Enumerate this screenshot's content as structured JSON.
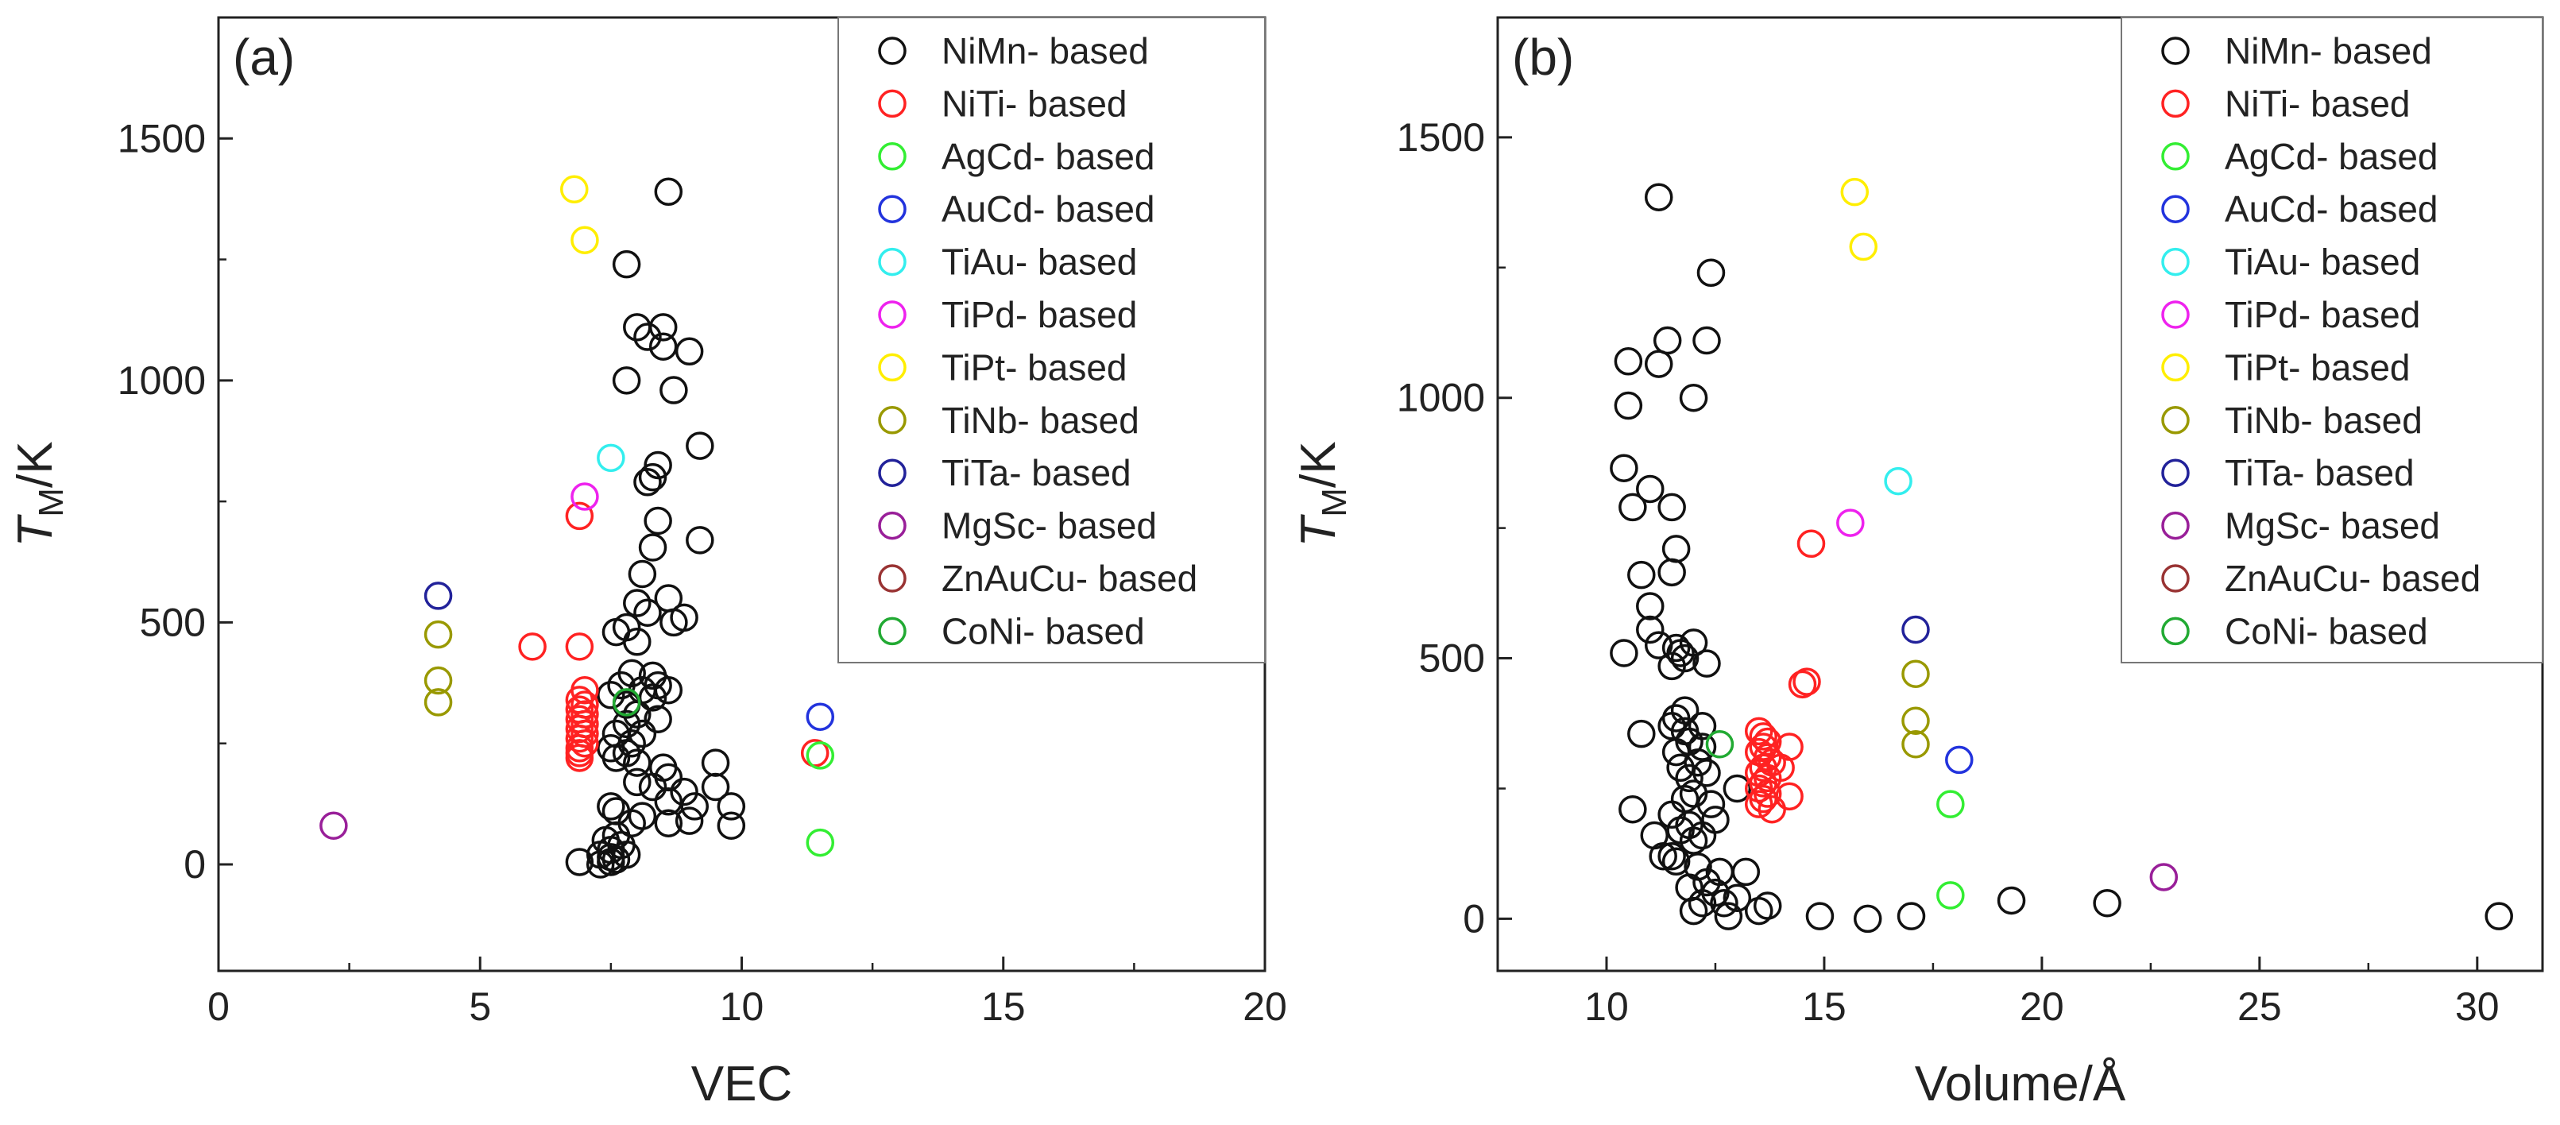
{
  "figure_description": "",
  "chart_data": [
    {
      "type": "scatter",
      "panel_label": "(a)",
      "title": "",
      "xlabel": "VEC",
      "ylabel_main": "T",
      "ylabel_sub": "M",
      "ylabel_rest": "/K",
      "xlim": [
        0,
        20
      ],
      "ylim": [
        -220,
        1750
      ],
      "xticks": [
        0,
        5,
        10,
        15,
        20
      ],
      "yticks": [
        0,
        500,
        1000,
        1500
      ],
      "grid": false,
      "legend_position": "top-right",
      "series": [
        {
          "name": "NiMn- based",
          "color": "#111111",
          "points": [
            [
              8.6,
              1390
            ],
            [
              7.8,
              1240
            ],
            [
              8.0,
              1110
            ],
            [
              8.5,
              1110
            ],
            [
              8.2,
              1090
            ],
            [
              8.5,
              1070
            ],
            [
              9.0,
              1060
            ],
            [
              7.8,
              1000
            ],
            [
              8.7,
              980
            ],
            [
              9.2,
              865
            ],
            [
              8.4,
              825
            ],
            [
              8.2,
              790
            ],
            [
              8.3,
              800
            ],
            [
              8.4,
              710
            ],
            [
              9.2,
              670
            ],
            [
              8.3,
              655
            ],
            [
              8.1,
              600
            ],
            [
              8.0,
              540
            ],
            [
              8.2,
              520
            ],
            [
              8.6,
              550
            ],
            [
              8.9,
              510
            ],
            [
              8.7,
              500
            ],
            [
              7.8,
              490
            ],
            [
              7.6,
              480
            ],
            [
              8.0,
              460
            ],
            [
              8.3,
              390
            ],
            [
              7.9,
              395
            ],
            [
              7.7,
              370
            ],
            [
              8.4,
              370
            ],
            [
              8.6,
              360
            ],
            [
              8.1,
              360
            ],
            [
              8.3,
              345
            ],
            [
              7.5,
              350
            ],
            [
              7.8,
              330
            ],
            [
              8.0,
              310
            ],
            [
              8.4,
              300
            ],
            [
              7.8,
              290
            ],
            [
              7.6,
              270
            ],
            [
              8.1,
              270
            ],
            [
              7.9,
              250
            ],
            [
              7.5,
              240
            ],
            [
              7.8,
              230
            ],
            [
              7.6,
              220
            ],
            [
              9.5,
              210
            ],
            [
              8.0,
              210
            ],
            [
              8.5,
              200
            ],
            [
              8.6,
              180
            ],
            [
              8.0,
              170
            ],
            [
              8.3,
              160
            ],
            [
              9.5,
              160
            ],
            [
              8.9,
              150
            ],
            [
              8.6,
              130
            ],
            [
              9.1,
              120
            ],
            [
              7.5,
              120
            ],
            [
              7.6,
              110
            ],
            [
              8.1,
              100
            ],
            [
              9.0,
              90
            ],
            [
              8.6,
              85
            ],
            [
              7.9,
              85
            ],
            [
              9.8,
              120
            ],
            [
              9.8,
              80
            ],
            [
              7.6,
              60
            ],
            [
              7.4,
              50
            ],
            [
              7.7,
              40
            ],
            [
              7.5,
              30
            ],
            [
              7.3,
              20
            ],
            [
              7.5,
              15
            ],
            [
              7.8,
              20
            ],
            [
              6.9,
              5
            ],
            [
              7.3,
              0
            ],
            [
              7.5,
              5
            ],
            [
              7.6,
              10
            ]
          ]
        },
        {
          "name": "NiTi- based",
          "color": "#ff2222",
          "points": [
            [
              6.0,
              450
            ],
            [
              6.9,
              450
            ],
            [
              6.9,
              720
            ],
            [
              7.0,
              360
            ],
            [
              6.9,
              340
            ],
            [
              7.0,
              330
            ],
            [
              6.9,
              320
            ],
            [
              7.0,
              310
            ],
            [
              6.9,
              300
            ],
            [
              7.0,
              290
            ],
            [
              6.9,
              280
            ],
            [
              7.0,
              270
            ],
            [
              6.9,
              260
            ],
            [
              7.0,
              250
            ],
            [
              6.9,
              240
            ],
            [
              6.9,
              230
            ],
            [
              6.9,
              220
            ],
            [
              11.4,
              230
            ]
          ]
        },
        {
          "name": "AgCd- based",
          "color": "#33ee33",
          "points": [
            [
              11.5,
              225
            ],
            [
              11.5,
              45
            ]
          ]
        },
        {
          "name": "AuCd- based",
          "color": "#2233dd",
          "points": [
            [
              11.5,
              305
            ]
          ]
        },
        {
          "name": "TiAu- based",
          "color": "#33eeee",
          "points": [
            [
              7.5,
              840
            ]
          ]
        },
        {
          "name": "TiPd- based",
          "color": "#ee22ee",
          "points": [
            [
              7.0,
              760
            ]
          ]
        },
        {
          "name": "TiPt- based",
          "color": "#ffee00",
          "points": [
            [
              6.8,
              1395
            ],
            [
              7.0,
              1290
            ]
          ]
        },
        {
          "name": "TiNb- based",
          "color": "#999900",
          "points": [
            [
              4.2,
              475
            ],
            [
              4.2,
              380
            ],
            [
              4.2,
              335
            ]
          ]
        },
        {
          "name": "TiTa- based",
          "color": "#22229a",
          "points": [
            [
              4.2,
              555
            ]
          ]
        },
        {
          "name": "MgSc- based",
          "color": "#991f99",
          "points": [
            [
              2.2,
              80
            ]
          ]
        },
        {
          "name": "ZnAuCu- based",
          "color": "#993333",
          "points": []
        },
        {
          "name": "CoNi- based",
          "color": "#22aa33",
          "points": [
            [
              7.8,
              335
            ]
          ]
        }
      ]
    },
    {
      "type": "scatter",
      "panel_label": "(b)",
      "title": "",
      "xlabel": "Volume/Å",
      "ylabel_main": "T",
      "ylabel_sub": "M",
      "ylabel_rest": "/K",
      "xlim": [
        7.5,
        31.5
      ],
      "ylim": [
        -100,
        1730
      ],
      "xticks": [
        10,
        15,
        20,
        25,
        30
      ],
      "yticks": [
        0,
        500,
        1000,
        1500
      ],
      "grid": false,
      "legend_position": "top-right",
      "series": [
        {
          "name": "NiMn- based",
          "color": "#111111",
          "points": [
            [
              11.2,
              1385
            ],
            [
              12.4,
              1240
            ],
            [
              11.4,
              1110
            ],
            [
              12.3,
              1110
            ],
            [
              10.5,
              1070
            ],
            [
              11.2,
              1065
            ],
            [
              10.5,
              985
            ],
            [
              12.0,
              1000
            ],
            [
              10.4,
              865
            ],
            [
              11.0,
              825
            ],
            [
              10.6,
              790
            ],
            [
              11.5,
              790
            ],
            [
              11.6,
              710
            ],
            [
              10.8,
              660
            ],
            [
              11.5,
              665
            ],
            [
              11.0,
              600
            ],
            [
              11.0,
              555
            ],
            [
              10.4,
              510
            ],
            [
              11.2,
              525
            ],
            [
              11.6,
              520
            ],
            [
              11.7,
              510
            ],
            [
              12.0,
              530
            ],
            [
              11.8,
              500
            ],
            [
              12.3,
              490
            ],
            [
              11.5,
              485
            ],
            [
              11.8,
              400
            ],
            [
              11.6,
              385
            ],
            [
              11.5,
              370
            ],
            [
              12.2,
              370
            ],
            [
              11.8,
              360
            ],
            [
              10.8,
              355
            ],
            [
              11.9,
              340
            ],
            [
              12.2,
              330
            ],
            [
              11.6,
              320
            ],
            [
              12.1,
              300
            ],
            [
              11.7,
              290
            ],
            [
              12.3,
              280
            ],
            [
              11.9,
              270
            ],
            [
              13.0,
              250
            ],
            [
              12.0,
              240
            ],
            [
              11.8,
              230
            ],
            [
              12.4,
              220
            ],
            [
              10.6,
              210
            ],
            [
              11.5,
              200
            ],
            [
              12.5,
              190
            ],
            [
              11.9,
              180
            ],
            [
              11.7,
              170
            ],
            [
              12.2,
              160
            ],
            [
              12.0,
              150
            ],
            [
              11.1,
              160
            ],
            [
              11.3,
              120
            ],
            [
              11.6,
              110
            ],
            [
              12.1,
              100
            ],
            [
              11.5,
              120
            ],
            [
              13.2,
              90
            ],
            [
              12.6,
              90
            ],
            [
              12.3,
              70
            ],
            [
              11.9,
              60
            ],
            [
              12.5,
              50
            ],
            [
              13.0,
              40
            ],
            [
              12.7,
              30
            ],
            [
              12.2,
              30
            ],
            [
              13.7,
              25
            ],
            [
              12.0,
              15
            ],
            [
              13.5,
              15
            ],
            [
              12.8,
              5
            ],
            [
              14.9,
              5
            ],
            [
              16.0,
              0
            ],
            [
              17.0,
              5
            ],
            [
              19.3,
              35
            ],
            [
              21.5,
              30
            ],
            [
              30.5,
              5
            ]
          ]
        },
        {
          "name": "NiTi- based",
          "color": "#ff2222",
          "points": [
            [
              14.7,
              720
            ],
            [
              14.6,
              455
            ],
            [
              14.5,
              450
            ],
            [
              14.2,
              330
            ],
            [
              13.5,
              360
            ],
            [
              13.6,
              350
            ],
            [
              13.7,
              340
            ],
            [
              13.6,
              330
            ],
            [
              13.5,
              320
            ],
            [
              13.7,
              310
            ],
            [
              13.8,
              300
            ],
            [
              13.6,
              290
            ],
            [
              14.0,
              290
            ],
            [
              13.5,
              280
            ],
            [
              13.7,
              270
            ],
            [
              13.6,
              260
            ],
            [
              13.5,
              250
            ],
            [
              13.7,
              240
            ],
            [
              14.2,
              235
            ],
            [
              13.6,
              230
            ],
            [
              13.5,
              220
            ],
            [
              13.8,
              210
            ]
          ]
        },
        {
          "name": "AgCd- based",
          "color": "#33ee33",
          "points": [
            [
              17.9,
              220
            ],
            [
              17.9,
              45
            ]
          ]
        },
        {
          "name": "AuCd- based",
          "color": "#2233dd",
          "points": [
            [
              18.1,
              305
            ]
          ]
        },
        {
          "name": "TiAu- based",
          "color": "#33eeee",
          "points": [
            [
              16.7,
              840
            ]
          ]
        },
        {
          "name": "TiPd- based",
          "color": "#ee22ee",
          "points": [
            [
              15.6,
              760
            ]
          ]
        },
        {
          "name": "TiPt- based",
          "color": "#ffee00",
          "points": [
            [
              15.7,
              1395
            ],
            [
              15.9,
              1290
            ]
          ]
        },
        {
          "name": "TiNb- based",
          "color": "#999900",
          "points": [
            [
              17.1,
              470
            ],
            [
              17.1,
              380
            ],
            [
              17.1,
              335
            ]
          ]
        },
        {
          "name": "TiTa- based",
          "color": "#22229a",
          "points": [
            [
              17.1,
              555
            ]
          ]
        },
        {
          "name": "MgSc- based",
          "color": "#991f99",
          "points": [
            [
              22.8,
              80
            ]
          ]
        },
        {
          "name": "ZnAuCu- based",
          "color": "#993333",
          "points": []
        },
        {
          "name": "CoNi- based",
          "color": "#22aa33",
          "points": [
            [
              12.6,
              335
            ]
          ]
        }
      ]
    }
  ]
}
